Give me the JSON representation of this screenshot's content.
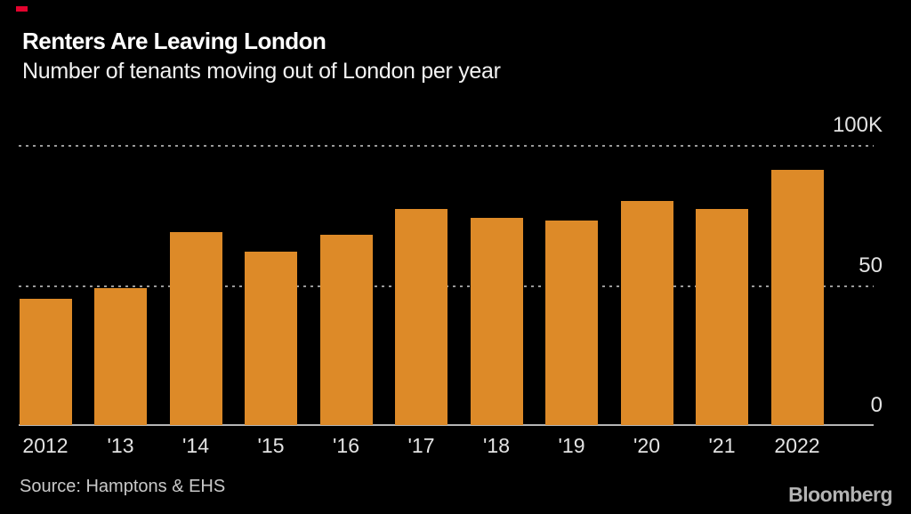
{
  "header": {
    "title": "Renters Are Leaving London",
    "subtitle": "Number of tenants moving out of London per year"
  },
  "chart_data": {
    "type": "bar",
    "title": "Renters Are Leaving London",
    "subtitle": "Number of tenants moving out of London per year",
    "categories": [
      "2012",
      "'13",
      "'14",
      "'15",
      "'16",
      "'17",
      "'18",
      "'19",
      "'20",
      "'21",
      "2022"
    ],
    "values": [
      45,
      49,
      69,
      62,
      68,
      77,
      74,
      73,
      80,
      77,
      91
    ],
    "unit": "thousands of tenants",
    "xlabel": "",
    "ylabel": "",
    "ylim": [
      0,
      100
    ],
    "yticks": [
      {
        "value": 0,
        "label": "0"
      },
      {
        "value": 50,
        "label": "50"
      },
      {
        "value": 100,
        "label": "100K"
      }
    ],
    "gridlines": [
      50,
      100
    ],
    "grid_style": "horizontal dotted",
    "legend": "none",
    "bar_color": "#DD8A28",
    "background_color": "#000000",
    "tick_label_color": "#e3e3e3",
    "axis_line_color": "#b5b5b5"
  },
  "footer": {
    "source": "Source:  Hamptons & EHS",
    "brand": "Bloomberg"
  },
  "accent": {
    "red_mark_color": "#E4032E"
  }
}
